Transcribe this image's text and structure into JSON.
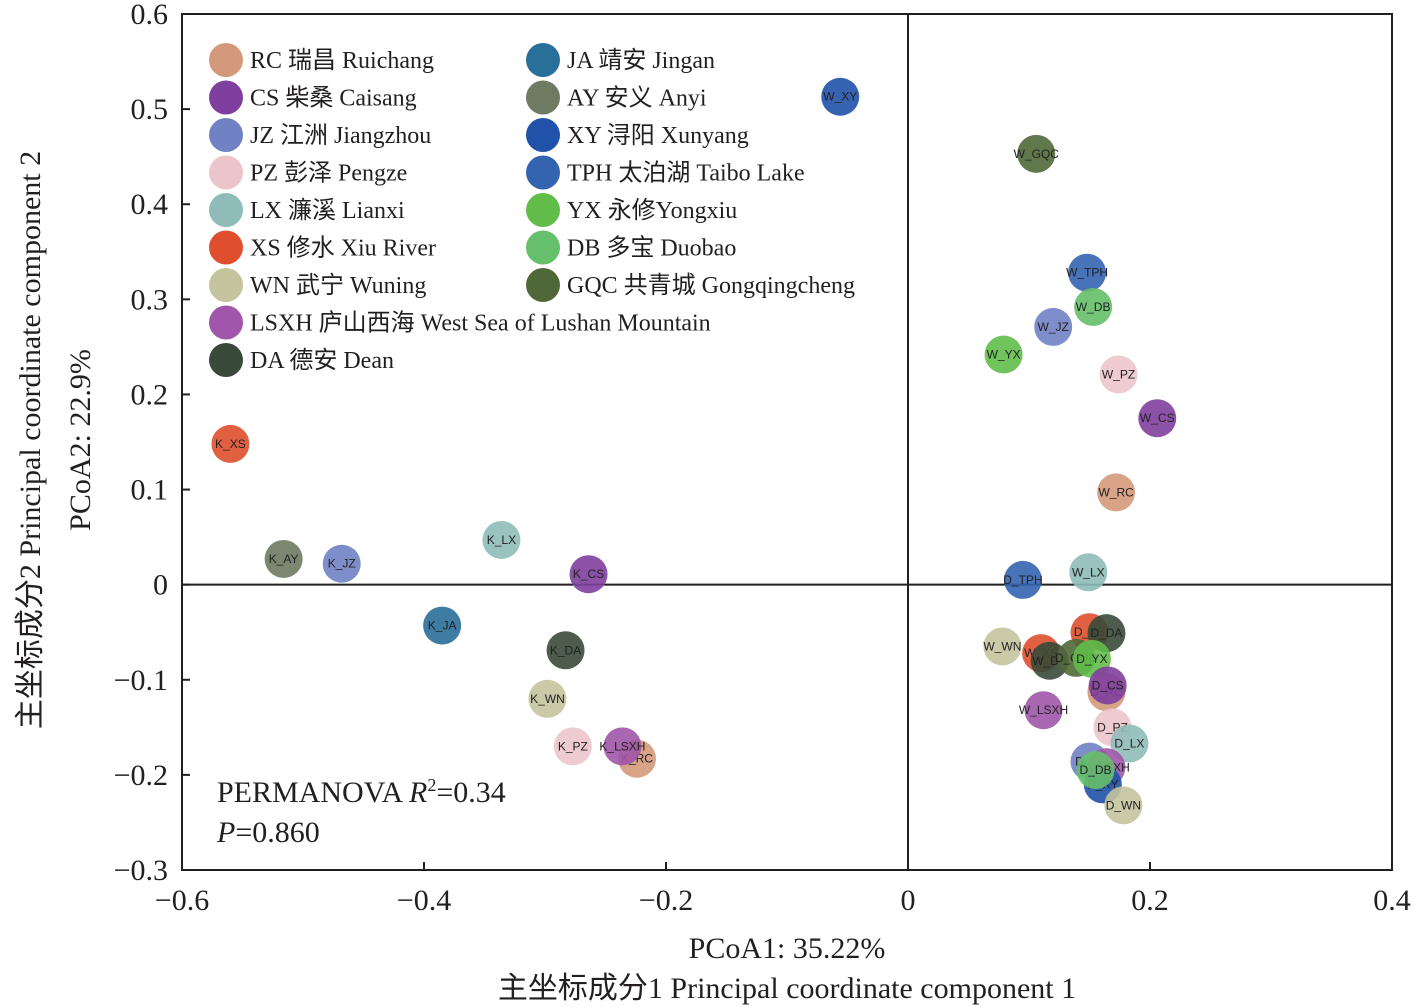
{
  "chart_data": {
    "type": "scatter",
    "title": "",
    "xlabel": "PCoA1: 35.22%",
    "xlabel_sub": "主坐标成分1 Principal coordinate component 1",
    "ylabel": "PCoA2: 22.9%",
    "ylabel_sub": "主坐标成分2 Principal coordinate component 2",
    "xlim": [
      -0.6,
      0.4
    ],
    "ylim": [
      -0.3,
      0.6
    ],
    "x_ticks": [
      -0.6,
      -0.4,
      -0.2,
      0,
      0.2,
      0.4
    ],
    "x_tick_labels": [
      "−0.6",
      "−0.4",
      "−0.2",
      "0",
      "0.2",
      "0.4"
    ],
    "y_ticks": [
      -0.3,
      -0.2,
      -0.1,
      0,
      0.1,
      0.2,
      0.3,
      0.4,
      0.5,
      0.6
    ],
    "y_tick_labels": [
      "−0.3",
      "−0.2",
      "−0.1",
      "0",
      "0.1",
      "0.2",
      "0.3",
      "0.4",
      "0.5",
      "0.6"
    ],
    "grid": false,
    "zero_lines": true,
    "legend_position": "top-left",
    "legend": [
      {
        "code": "RC",
        "label": "RC 瑞昌 Ruichang",
        "color": "#d4997a"
      },
      {
        "code": "CS",
        "label": "CS 柴桑 Caisang",
        "color": "#7f3f9e"
      },
      {
        "code": "JZ",
        "label": "JZ 江洲 Jiangzhou",
        "color": "#7082c4"
      },
      {
        "code": "PZ",
        "label": "PZ 彭泽 Pengze",
        "color": "#ecc4cc"
      },
      {
        "code": "LX",
        "label": "LX 濂溪 Lianxi",
        "color": "#8fbcb8"
      },
      {
        "code": "XS",
        "label": "XS 修水 Xiu River",
        "color": "#df4f2e"
      },
      {
        "code": "WN",
        "label": "WN 武宁 Wuning",
        "color": "#c4c49e"
      },
      {
        "code": "LSXH",
        "label": "LSXH 庐山西海 West Sea of Lushan Mountain",
        "color": "#a056aa"
      },
      {
        "code": "DA",
        "label": "DA 德安 Dean",
        "color": "#3a4a3a"
      },
      {
        "code": "JA",
        "label": "JA 靖安 Jingan",
        "color": "#2a6e9a"
      },
      {
        "code": "AY",
        "label": "AY 安义 Anyi",
        "color": "#6e7a62"
      },
      {
        "code": "XY",
        "label": "XY 浔阳 Xunyang",
        "color": "#1f52a8"
      },
      {
        "code": "TPH",
        "label": "TPH 太泊湖 Taibo Lake",
        "color": "#3464b0"
      },
      {
        "code": "YX",
        "label": "YX 永修Yongxiu",
        "color": "#62bc4a"
      },
      {
        "code": "DB",
        "label": "DB 多宝 Duobao",
        "color": "#66bf6a"
      },
      {
        "code": "GQC",
        "label": "GQC 共青城 Gongqingcheng",
        "color": "#506838"
      }
    ],
    "points": [
      {
        "label": "K_XS",
        "group": "XS",
        "x": -0.56,
        "y": 0.148
      },
      {
        "label": "K_AY",
        "group": "AY",
        "x": -0.516,
        "y": 0.027
      },
      {
        "label": "K_JZ",
        "group": "JZ",
        "x": -0.468,
        "y": 0.022
      },
      {
        "label": "K_LX",
        "group": "LX",
        "x": -0.336,
        "y": 0.047
      },
      {
        "label": "K_CS",
        "group": "CS",
        "x": -0.264,
        "y": 0.011
      },
      {
        "label": "K_JA",
        "group": "JA",
        "x": -0.385,
        "y": -0.043
      },
      {
        "label": "K_DA",
        "group": "DA",
        "x": -0.283,
        "y": -0.069
      },
      {
        "label": "K_WN",
        "group": "WN",
        "x": -0.298,
        "y": -0.12
      },
      {
        "label": "K_PZ",
        "group": "PZ",
        "x": -0.277,
        "y": -0.17
      },
      {
        "label": "K_RC",
        "group": "RC",
        "x": -0.224,
        "y": -0.183
      },
      {
        "label": "K_LSXH",
        "group": "LSXH",
        "x": -0.236,
        "y": -0.17
      },
      {
        "label": "W_XY",
        "group": "XY",
        "x": -0.056,
        "y": 0.513
      },
      {
        "label": "W_GQC",
        "group": "GQC",
        "x": 0.106,
        "y": 0.453
      },
      {
        "label": "W_TPH",
        "group": "TPH",
        "x": 0.148,
        "y": 0.328
      },
      {
        "label": "W_DB",
        "group": "DB",
        "x": 0.153,
        "y": 0.292
      },
      {
        "label": "W_JZ",
        "group": "JZ",
        "x": 0.12,
        "y": 0.271
      },
      {
        "label": "W_YX",
        "group": "YX",
        "x": 0.079,
        "y": 0.242
      },
      {
        "label": "W_PZ",
        "group": "PZ",
        "x": 0.174,
        "y": 0.221
      },
      {
        "label": "W_CS",
        "group": "CS",
        "x": 0.206,
        "y": 0.175
      },
      {
        "label": "W_RC",
        "group": "RC",
        "x": 0.172,
        "y": 0.097
      },
      {
        "label": "W_LX",
        "group": "LX",
        "x": 0.149,
        "y": 0.013
      },
      {
        "label": "D_TPH",
        "group": "TPH",
        "x": 0.095,
        "y": 0.005
      },
      {
        "label": "W_WN",
        "group": "WN",
        "x": 0.078,
        "y": -0.065
      },
      {
        "label": "D_XS",
        "group": "XS",
        "x": 0.15,
        "y": -0.05
      },
      {
        "label": "D_DA",
        "group": "DA",
        "x": 0.164,
        "y": -0.051
      },
      {
        "label": "W_XS",
        "group": "XS",
        "x": 0.11,
        "y": -0.072
      },
      {
        "label": "W_DA",
        "group": "DA",
        "x": 0.117,
        "y": -0.08
      },
      {
        "label": "D_GQC",
        "group": "GQC",
        "x": 0.139,
        "y": -0.077
      },
      {
        "label": "D_YX",
        "group": "YX",
        "x": 0.152,
        "y": -0.078
      },
      {
        "label": "D_RC",
        "group": "RC",
        "x": 0.164,
        "y": -0.113
      },
      {
        "label": "D_CS",
        "group": "CS",
        "x": 0.165,
        "y": -0.106
      },
      {
        "label": "W_LSXH",
        "group": "LSXH",
        "x": 0.112,
        "y": -0.132
      },
      {
        "label": "D_PZ",
        "group": "PZ",
        "x": 0.169,
        "y": -0.15
      },
      {
        "label": "D_LX",
        "group": "LX",
        "x": 0.183,
        "y": -0.167
      },
      {
        "label": "D_JZ",
        "group": "JZ",
        "x": 0.15,
        "y": -0.186
      },
      {
        "label": "D_LSXH",
        "group": "LSXH",
        "x": 0.164,
        "y": -0.192
      },
      {
        "label": "D_XY",
        "group": "XY",
        "x": 0.161,
        "y": -0.21
      },
      {
        "label": "D_DB",
        "group": "DB",
        "x": 0.155,
        "y": -0.195
      },
      {
        "label": "D_WN",
        "group": "WN",
        "x": 0.178,
        "y": -0.232
      }
    ],
    "annotations": {
      "permanova_label": "PERMANOVA ",
      "r2_symbol": "R",
      "r2_sup": "2",
      "r2_value": "=0.34",
      "p_symbol": "P",
      "p_value": "=0.860"
    }
  }
}
